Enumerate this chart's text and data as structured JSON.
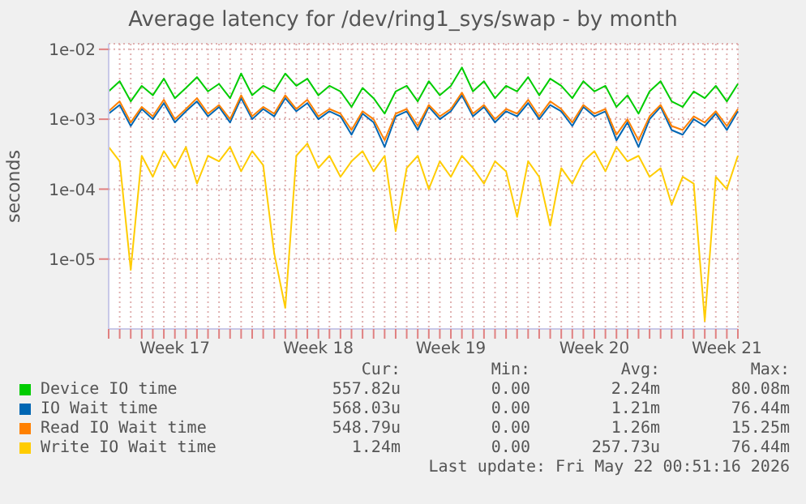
{
  "chart_data": {
    "type": "line",
    "title": "Average latency for /dev/ring1_sys/swap - by month",
    "ylabel": "seconds",
    "log": "y",
    "grid": true,
    "legend": "bottom",
    "marker": "none",
    "line_style": "solid",
    "categories": [
      null,
      null,
      null,
      null,
      null,
      null,
      "Week 17",
      null,
      null,
      null,
      null,
      null,
      null,
      null,
      null,
      null,
      null,
      null,
      null,
      "Week 18",
      null,
      null,
      null,
      null,
      null,
      null,
      null,
      null,
      null,
      null,
      null,
      "Week 19",
      null,
      null,
      null,
      null,
      null,
      null,
      null,
      null,
      null,
      null,
      null,
      null,
      "Week 20",
      null,
      null,
      null,
      null,
      null,
      null,
      null,
      null,
      null,
      null,
      null,
      "Week 21",
      null
    ],
    "ylim": [
      1e-06,
      0.012
    ],
    "yticks": [
      {
        "value": 1e-05,
        "label": "1e-05"
      },
      {
        "value": 0.0001,
        "label": "1e-04"
      },
      {
        "value": 0.001,
        "label": "1e-03"
      },
      {
        "value": 0.01,
        "label": "1e-02"
      }
    ],
    "series": [
      {
        "name": "Device IO time",
        "color": "#00cc00",
        "values": [
          0.0025,
          0.0035,
          0.0018,
          0.003,
          0.0022,
          0.0038,
          0.002,
          0.0028,
          0.004,
          0.0025,
          0.0032,
          0.002,
          0.0045,
          0.0022,
          0.003,
          0.0025,
          0.0045,
          0.003,
          0.0038,
          0.0022,
          0.003,
          0.0025,
          0.0015,
          0.0028,
          0.002,
          0.0012,
          0.0025,
          0.003,
          0.0018,
          0.0035,
          0.0022,
          0.003,
          0.0055,
          0.0025,
          0.0035,
          0.002,
          0.003,
          0.0025,
          0.004,
          0.0022,
          0.0038,
          0.003,
          0.002,
          0.0035,
          0.0025,
          0.003,
          0.0015,
          0.0022,
          0.0012,
          0.0025,
          0.0035,
          0.0018,
          0.0015,
          0.0025,
          0.002,
          0.003,
          0.0018,
          0.0032
        ]
      },
      {
        "name": "IO Wait time",
        "color": "#0066b3",
        "values": [
          0.0012,
          0.0016,
          0.0008,
          0.0014,
          0.001,
          0.0017,
          0.0009,
          0.0013,
          0.0018,
          0.0011,
          0.0015,
          0.0009,
          0.002,
          0.001,
          0.0014,
          0.0011,
          0.002,
          0.0013,
          0.0017,
          0.001,
          0.0013,
          0.0011,
          0.0006,
          0.0012,
          0.0009,
          0.0004,
          0.0011,
          0.0013,
          0.0007,
          0.0015,
          0.001,
          0.0013,
          0.0022,
          0.0011,
          0.0015,
          0.0009,
          0.0013,
          0.0011,
          0.0017,
          0.001,
          0.0016,
          0.0013,
          0.0008,
          0.0015,
          0.0011,
          0.0013,
          0.0005,
          0.0009,
          0.0004,
          0.001,
          0.0015,
          0.0007,
          0.0006,
          0.001,
          0.0008,
          0.0012,
          0.0007,
          0.0013
        ]
      },
      {
        "name": "Read IO Wait time",
        "color": "#ff8000",
        "values": [
          0.0013,
          0.0018,
          0.0009,
          0.0015,
          0.0011,
          0.0019,
          0.001,
          0.0014,
          0.002,
          0.0012,
          0.0016,
          0.001,
          0.0022,
          0.0011,
          0.0015,
          0.0012,
          0.0022,
          0.0014,
          0.0019,
          0.0011,
          0.0014,
          0.0012,
          0.0007,
          0.0013,
          0.001,
          0.0005,
          0.0012,
          0.0014,
          0.0008,
          0.0016,
          0.0011,
          0.0014,
          0.0024,
          0.0012,
          0.0016,
          0.001,
          0.0014,
          0.0012,
          0.0019,
          0.0011,
          0.0018,
          0.0014,
          0.0009,
          0.0016,
          0.0012,
          0.0014,
          0.0006,
          0.001,
          0.0005,
          0.0011,
          0.0016,
          0.0008,
          0.0007,
          0.0011,
          0.0009,
          0.0013,
          0.0008,
          0.0014
        ]
      },
      {
        "name": "Write IO Wait time",
        "color": "#ffcc00",
        "values": [
          0.0004,
          0.00025,
          7e-06,
          0.0003,
          0.00015,
          0.00035,
          0.0002,
          0.0004,
          0.00012,
          0.0003,
          0.00025,
          0.0004,
          0.00018,
          0.00035,
          0.00022,
          1.2e-05,
          2e-06,
          0.0003,
          0.00045,
          0.0002,
          0.0003,
          0.00015,
          0.00025,
          0.00035,
          0.00018,
          0.0003,
          2.5e-05,
          0.0002,
          0.0003,
          0.0001,
          0.00025,
          0.00015,
          0.0003,
          0.0002,
          0.00012,
          0.00025,
          0.00018,
          4e-05,
          0.00025,
          0.00015,
          3e-05,
          0.0002,
          0.00012,
          0.00025,
          0.00035,
          0.00018,
          0.0004,
          0.00025,
          0.0003,
          0.00015,
          0.0002,
          6e-05,
          0.00015,
          0.00012,
          1.3e-06,
          0.00015,
          0.0001,
          0.0003
        ]
      }
    ],
    "annotations": [
      "Cur:",
      "Min:",
      "Avg:",
      "Max:",
      "557.82u",
      "0.00",
      "2.24m",
      "80.08m",
      "568.03u",
      "0.00",
      "1.21m",
      "76.44m",
      "548.79u",
      "0.00",
      "1.26m",
      "15.25m",
      "1.24m",
      "0.00",
      "257.73u",
      "76.44m",
      "Last update: Fri May 22 00:51:16 2026"
    ]
  }
}
